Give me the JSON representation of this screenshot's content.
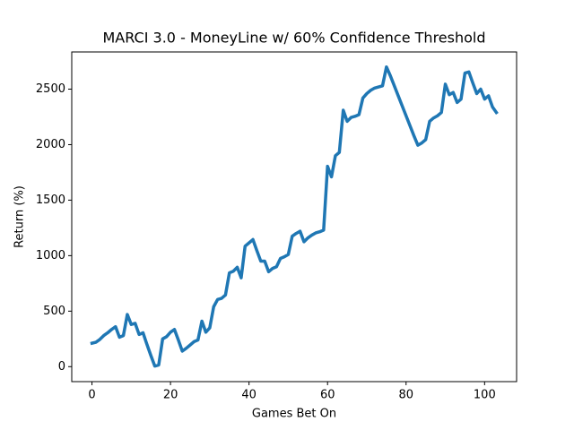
{
  "chart_data": {
    "type": "line",
    "title": "MARCI 3.0 - MoneyLine w/ 60% Confidence Threshold",
    "xlabel": "Games Bet On",
    "ylabel": "Return (%)",
    "x": [
      0,
      1,
      2,
      3,
      4,
      5,
      6,
      7,
      8,
      9,
      10,
      11,
      12,
      13,
      14,
      15,
      16,
      17,
      18,
      19,
      20,
      21,
      22,
      23,
      24,
      25,
      26,
      27,
      28,
      29,
      30,
      31,
      32,
      33,
      34,
      35,
      36,
      37,
      38,
      39,
      40,
      41,
      42,
      43,
      44,
      45,
      46,
      47,
      48,
      49,
      50,
      51,
      52,
      53,
      54,
      55,
      56,
      57,
      58,
      59,
      60,
      61,
      62,
      63,
      64,
      65,
      66,
      67,
      68,
      69,
      70,
      71,
      72,
      73,
      74,
      75,
      76,
      77,
      78,
      79,
      80,
      81,
      82,
      83,
      84,
      85,
      86,
      87,
      88,
      89,
      90,
      91,
      92,
      93,
      94,
      95,
      96,
      97,
      98,
      99,
      100,
      101,
      102,
      103
    ],
    "series": [
      {
        "color": "#1f77b4",
        "values": [
          211,
          220,
          245,
          280,
          305,
          335,
          360,
          265,
          280,
          470,
          380,
          390,
          290,
          305,
          200,
          100,
          5,
          15,
          250,
          270,
          310,
          335,
          240,
          140,
          165,
          195,
          225,
          240,
          410,
          310,
          350,
          540,
          605,
          615,
          645,
          845,
          860,
          895,
          800,
          1085,
          1115,
          1145,
          1045,
          950,
          950,
          855,
          885,
          900,
          975,
          990,
          1010,
          1175,
          1200,
          1220,
          1125,
          1160,
          1185,
          1205,
          1215,
          1230,
          1805,
          1710,
          1900,
          1930,
          2310,
          2210,
          2245,
          2255,
          2270,
          2420,
          2460,
          2490,
          2510,
          2520,
          2530,
          2700,
          2620,
          2530,
          2440,
          2350,
          2260,
          2170,
          2080,
          1995,
          2015,
          2045,
          2210,
          2240,
          2260,
          2290,
          2545,
          2450,
          2470,
          2380,
          2410,
          2645,
          2655,
          2555,
          2460,
          2500,
          2410,
          2440,
          2340,
          2290
        ]
      }
    ],
    "xlim": [
      -5.15,
      108.15
    ],
    "xticks": [
      0,
      20,
      40,
      60,
      80,
      100
    ],
    "ylim": [
      -135,
      2835
    ],
    "yticks": [
      0,
      500,
      1000,
      1500,
      2000,
      2500
    ]
  }
}
